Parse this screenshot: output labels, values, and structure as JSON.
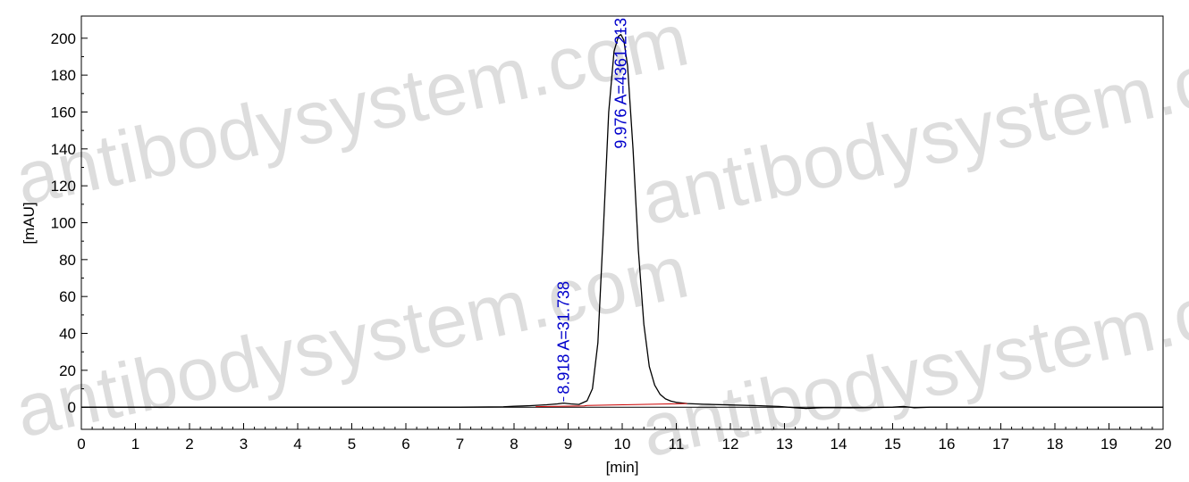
{
  "watermark": "antibodysystem.com",
  "chart_data": {
    "type": "line",
    "xlabel": "[min]",
    "ylabel": "[mAU]",
    "xlim": [
      0,
      20
    ],
    "ylim": [
      -12,
      212
    ],
    "x_ticks": [
      0,
      1,
      2,
      3,
      4,
      5,
      6,
      7,
      8,
      9,
      10,
      11,
      12,
      13,
      14,
      15,
      16,
      17,
      18,
      19,
      20
    ],
    "y_ticks": [
      0,
      20,
      40,
      60,
      80,
      100,
      120,
      140,
      160,
      180,
      200
    ],
    "series": [
      {
        "color": "#000000",
        "x": [
          0,
          7.0,
          7.8,
          8.0,
          8.3,
          8.6,
          8.8,
          8.918,
          9.05,
          9.2,
          9.35,
          9.45,
          9.55,
          9.65,
          9.75,
          9.85,
          9.93,
          9.976,
          10.03,
          10.1,
          10.2,
          10.3,
          10.4,
          10.5,
          10.6,
          10.7,
          10.8,
          10.9,
          11.0,
          11.2,
          11.5,
          12.0,
          12.5,
          12.9,
          13.2,
          13.4,
          13.6,
          13.8,
          14.2,
          14.6,
          15.0,
          15.2,
          15.4,
          15.7,
          16.2,
          20
        ],
        "y": [
          0,
          0,
          0.2,
          0.5,
          0.8,
          1.3,
          1.8,
          2.2,
          1.8,
          1.5,
          3.5,
          10,
          35,
          95,
          160,
          193,
          201,
          202,
          199,
          185,
          140,
          85,
          45,
          22,
          12,
          7,
          4.5,
          3.3,
          2.6,
          2.0,
          1.6,
          1.2,
          0.8,
          0.4,
          -0.3,
          -0.7,
          -0.4,
          -0.2,
          -0.3,
          -0.2,
          0,
          0.4,
          -0.3,
          0,
          0,
          0
        ]
      },
      {
        "color": "#cc0000",
        "x": [
          8.4,
          9.3,
          9.35,
          11.2
        ],
        "y": [
          0.3,
          0.7,
          0.9,
          2.0
        ]
      }
    ],
    "annotations": [
      {
        "text": "8.918 A=31.738",
        "x": 8.918,
        "y": 2.2,
        "color": "#0000cc"
      },
      {
        "text": "9.976 A=4361.213",
        "x": 9.976,
        "y": 202,
        "color": "#0000cc"
      }
    ],
    "grid": false,
    "legend": "none"
  }
}
